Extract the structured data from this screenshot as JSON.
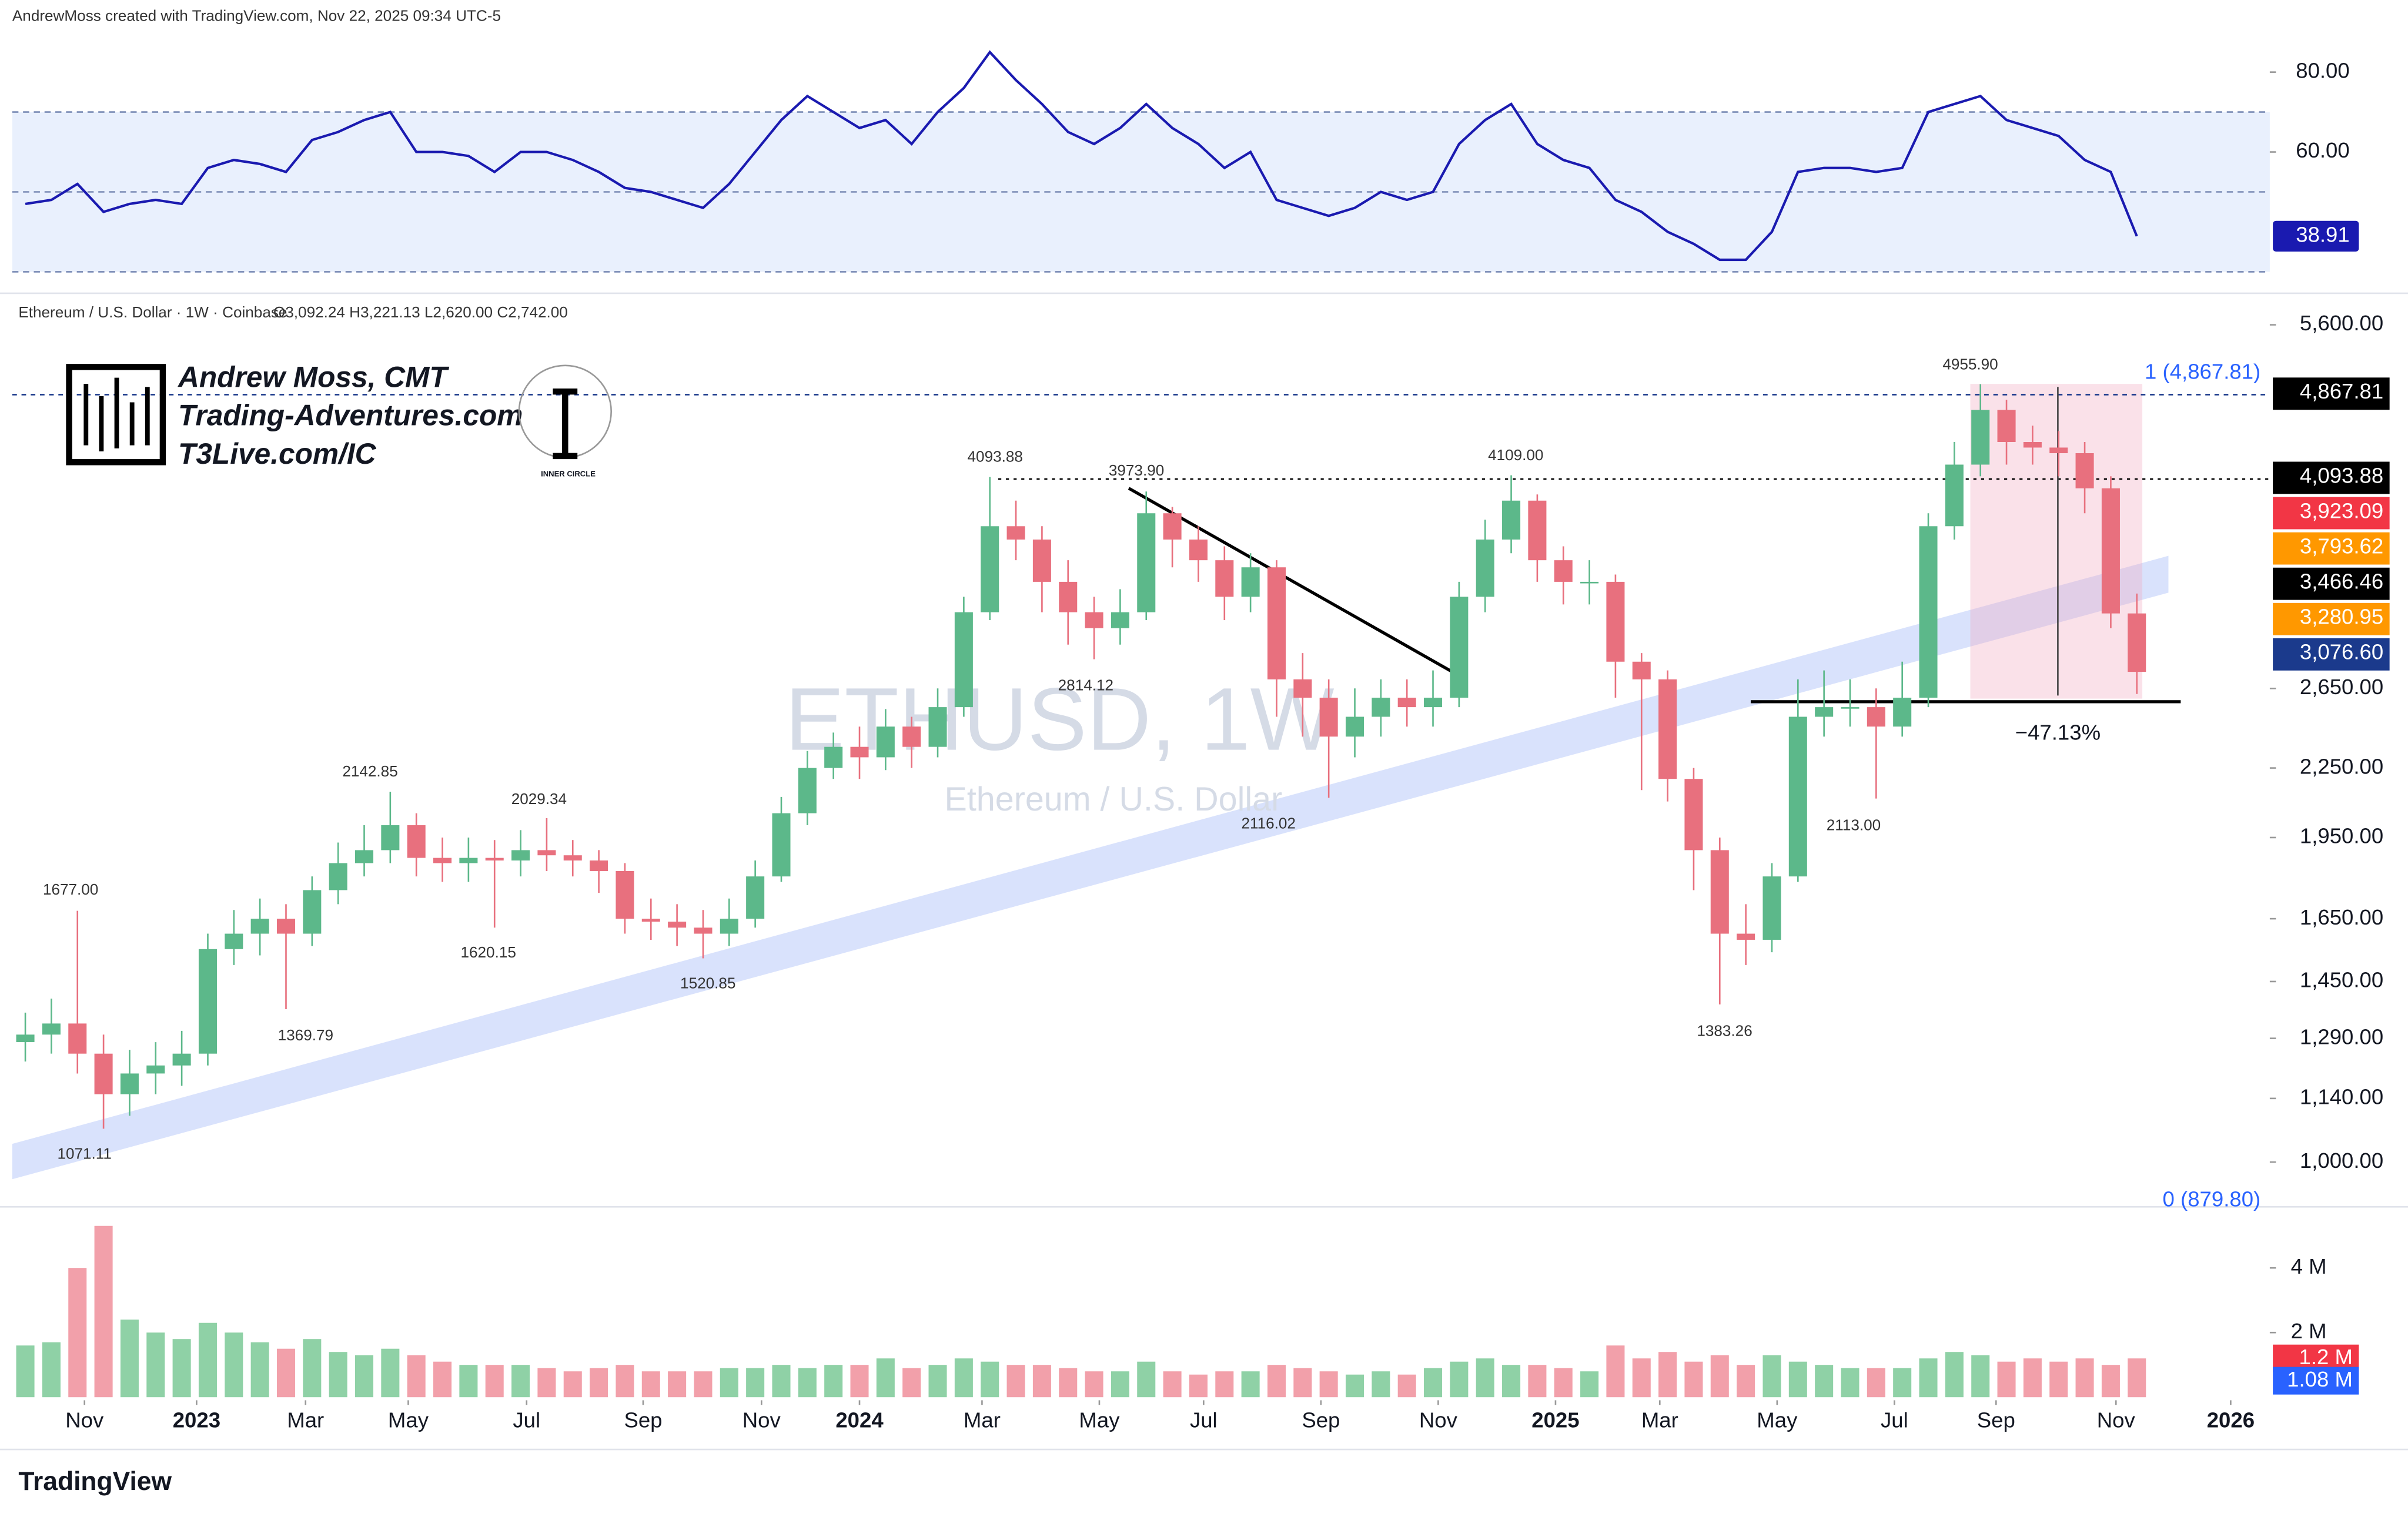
{
  "header": "AndrewMoss created with TradingView.com, Nov 22, 2025 09:34 UTC-5",
  "logo": {
    "name": "Andrew Moss, CMT",
    "site": "Trading-Adventures.com",
    "link": "T3Live.com/IC",
    "badge": "INNER CIRCLE"
  },
  "footer": "TradingView",
  "chart_data": [
    {
      "type": "line",
      "color": "#1a1ab0",
      "ylim": [
        25,
        94.2
      ],
      "yticks": [
        {
          "value": 60,
          "label": "60.00"
        },
        {
          "value": 80,
          "label": "80.00"
        }
      ],
      "bands": [
        30,
        50,
        70
      ],
      "values": [
        47,
        48,
        52,
        45,
        47,
        48,
        47,
        56,
        58,
        57,
        55,
        63,
        65,
        68,
        70,
        60,
        60,
        59,
        55,
        60,
        60,
        58,
        55,
        51,
        50,
        48,
        46,
        52,
        60,
        68,
        74,
        70,
        66,
        68,
        62,
        70,
        76,
        85,
        78,
        72,
        65,
        62,
        66,
        72,
        66,
        62,
        56,
        60,
        48,
        46,
        44,
        46,
        50,
        48,
        50,
        62,
        68,
        72,
        62,
        58,
        56,
        48,
        45,
        40,
        37,
        33,
        33,
        40,
        55,
        56,
        56,
        55,
        56,
        70,
        72,
        74,
        68,
        66,
        64,
        58,
        55,
        38.91
      ]
    },
    {
      "type": "candlestick",
      "symbol": "Ethereum / U.S. Dollar · 1W · Coinbase",
      "ohlc_label": "O3,092.24 H3,221.13 L2,620.00 C2,742.00",
      "watermark": "ETHUSD, 1W",
      "watermark_sub": "Ethereum / U.S. Dollar",
      "log_scale": true,
      "ylim": [
        915,
        5900
      ],
      "yticks": [
        {
          "value": 5600,
          "label": "5,600.00"
        },
        {
          "value": 2650,
          "label": "2,650.00"
        },
        {
          "value": 2250,
          "label": "2,250.00"
        },
        {
          "value": 1950,
          "label": "1,950.00"
        },
        {
          "value": 1650,
          "label": "1,650.00"
        },
        {
          "value": 1450,
          "label": "1,450.00"
        },
        {
          "value": 1290,
          "label": "1,290.00"
        },
        {
          "value": 1140,
          "label": "1,140.00"
        },
        {
          "value": 1000,
          "label": "1,000.00"
        }
      ],
      "xlim": [
        -0.5,
        86.1
      ],
      "xticks": [
        {
          "value": 2.27,
          "label": "Nov"
        },
        {
          "value": 6.57,
          "label": "2023"
        },
        {
          "value": 10.75,
          "label": "Mar"
        },
        {
          "value": 14.69,
          "label": "May"
        },
        {
          "value": 19.23,
          "label": "Jul"
        },
        {
          "value": 23.7,
          "label": "Sep"
        },
        {
          "value": 28.24,
          "label": "Nov"
        },
        {
          "value": 32.0,
          "label": "2024"
        },
        {
          "value": 36.7,
          "label": "Mar"
        },
        {
          "value": 41.2,
          "label": "May"
        },
        {
          "value": 45.2,
          "label": "Jul"
        },
        {
          "value": 49.7,
          "label": "Sep"
        },
        {
          "value": 54.2,
          "label": "Nov"
        },
        {
          "value": 58.7,
          "label": "2025"
        },
        {
          "value": 62.7,
          "label": "Mar"
        },
        {
          "value": 67.2,
          "label": "May"
        },
        {
          "value": 71.7,
          "label": "Jul"
        },
        {
          "value": 75.6,
          "label": "Sep"
        },
        {
          "value": 80.2,
          "label": "Nov"
        },
        {
          "value": 84.6,
          "label": "2026"
        }
      ],
      "up_color": "#5cb88a",
      "down_color": "#e8707e",
      "open": [
        1280,
        1300,
        1330,
        1250,
        1150,
        1200,
        1220,
        1250,
        1550,
        1600,
        1650,
        1600,
        1750,
        1850,
        1900,
        2000,
        1870,
        1850,
        1870,
        1860,
        1900,
        1880,
        1860,
        1820,
        1650,
        1640,
        1620,
        1600,
        1650,
        1800,
        2050,
        2250,
        2350,
        2300,
        2450,
        2350,
        2550,
        3100,
        3700,
        3600,
        3300,
        3100,
        3000,
        3100,
        3800,
        3600,
        3450,
        3200,
        3400,
        2700,
        2600,
        2400,
        2500,
        2600,
        2550,
        2600,
        3200,
        3600,
        3900,
        3450,
        3300,
        3300,
        2800,
        2700,
        2200,
        1900,
        1600,
        1580,
        1800,
        2500,
        2550,
        2550,
        2450,
        2600,
        3700,
        4200,
        4700,
        4400,
        4350,
        4300,
        4000,
        3092.24
      ],
      "high": [
        1360,
        1400,
        1677,
        1300,
        1260,
        1280,
        1310,
        1600,
        1680,
        1720,
        1700,
        1800,
        1930,
        2000,
        2142.85,
        2050,
        1950,
        1950,
        1940,
        1980,
        2029.34,
        1940,
        1900,
        1850,
        1720,
        1700,
        1680,
        1720,
        1860,
        2120,
        2330,
        2420,
        2450,
        2540,
        2500,
        2650,
        3200,
        4093.88,
        3900,
        3700,
        3450,
        3200,
        3250,
        3973.9,
        3850,
        3700,
        3550,
        3500,
        3450,
        2850,
        2700,
        2650,
        2700,
        2700,
        2750,
        3300,
        3750,
        4109,
        3950,
        3550,
        3450,
        3350,
        2850,
        2750,
        2250,
        1950,
        1700,
        1850,
        2700,
        2750,
        2700,
        2650,
        2800,
        3800,
        4400,
        4955.9,
        4800,
        4550,
        4500,
        4400,
        4100,
        3221.13
      ],
      "low": [
        1230,
        1250,
        1200,
        1071.11,
        1100,
        1150,
        1170,
        1220,
        1500,
        1530,
        1369.79,
        1560,
        1700,
        1800,
        1850,
        1800,
        1780,
        1780,
        1620.15,
        1800,
        1820,
        1800,
        1740,
        1600,
        1580,
        1560,
        1520.85,
        1560,
        1620,
        1780,
        2000,
        2200,
        2200,
        2240,
        2250,
        2300,
        2500,
        3050,
        3450,
        3100,
        2900,
        2814.12,
        2900,
        3050,
        3400,
        3300,
        3050,
        3100,
        2500,
        2400,
        2116.02,
        2300,
        2400,
        2450,
        2450,
        2550,
        3100,
        3500,
        3300,
        3150,
        3150,
        2600,
        2150,
        2100,
        1750,
        1383.26,
        1500,
        1540,
        1780,
        2400,
        2450,
        2113,
        2400,
        2550,
        3600,
        4100,
        4200,
        4200,
        4100,
        3800,
        3000,
        2620
      ],
      "close": [
        1300,
        1330,
        1250,
        1150,
        1200,
        1220,
        1250,
        1550,
        1600,
        1650,
        1600,
        1750,
        1850,
        1900,
        2000,
        1870,
        1850,
        1870,
        1860,
        1900,
        1880,
        1860,
        1820,
        1650,
        1640,
        1620,
        1600,
        1650,
        1800,
        2050,
        2250,
        2350,
        2300,
        2450,
        2350,
        2550,
        3100,
        3700,
        3600,
        3300,
        3100,
        3000,
        3100,
        3800,
        3600,
        3450,
        3200,
        3400,
        2700,
        2600,
        2400,
        2500,
        2600,
        2550,
        2600,
        3200,
        3600,
        3900,
        3450,
        3300,
        3300,
        2800,
        2700,
        2200,
        1900,
        1600,
        1580,
        1800,
        2500,
        2550,
        2550,
        2450,
        2600,
        3700,
        4200,
        4700,
        4400,
        4350,
        4300,
        4000,
        3092.24,
        2742
      ],
      "price_labels": [
        "1677.00",
        "1071.11",
        "2142.85",
        "1369.79",
        "2029.34",
        "1620.15",
        "1520.85",
        "4093.88",
        "3973.90",
        "2814.12",
        "2116.02",
        "4109.00",
        "4955.90",
        "1383.26",
        "2113.00"
      ],
      "axis_badges": [
        {
          "value": 4867.81,
          "label": "4,867.81",
          "color": "#000000"
        },
        {
          "value": 4093.88,
          "label": "4,093.88",
          "color": "#000000"
        },
        {
          "value": 3923.09,
          "label": "3,923.09",
          "color": "#f23645"
        },
        {
          "value": 3793.62,
          "label": "3,793.62",
          "color": "#ff9800"
        },
        {
          "value": 3466.46,
          "label": "3,466.46",
          "color": "#000000"
        },
        {
          "value": 3280.95,
          "label": "3,280.95",
          "color": "#ff9800"
        },
        {
          "value": 3076.6,
          "label": "3,076.60",
          "color": "#1b3a8c"
        }
      ],
      "fib_top": "1 (4,867.81)",
      "fib_bottom": "0 (879.80)",
      "drawdown": "−47.13%"
    },
    {
      "type": "volume",
      "ylim": [
        0,
        5700000
      ],
      "yticks": [
        {
          "value": 2000000,
          "label": "2 M"
        },
        {
          "value": 4000000,
          "label": "4 M"
        }
      ],
      "up_color": "#8fd1a6",
      "down_color": "#f2a0aa",
      "values": [
        1600000,
        1700000,
        4000000,
        5300000,
        2400000,
        2000000,
        1800000,
        2300000,
        2000000,
        1700000,
        1500000,
        1800000,
        1400000,
        1300000,
        1500000,
        1300000,
        1100000,
        1000000,
        1000000,
        1000000,
        900000,
        800000,
        900000,
        1000000,
        800000,
        800000,
        800000,
        900000,
        900000,
        1000000,
        900000,
        1000000,
        1000000,
        1200000,
        900000,
        1000000,
        1200000,
        1100000,
        1000000,
        1000000,
        900000,
        800000,
        800000,
        1100000,
        800000,
        700000,
        800000,
        800000,
        1000000,
        900000,
        800000,
        700000,
        800000,
        700000,
        900000,
        1100000,
        1200000,
        1000000,
        1000000,
        900000,
        800000,
        1600000,
        1200000,
        1400000,
        1100000,
        1300000,
        1000000,
        1300000,
        1100000,
        1000000,
        900000,
        900000,
        900000,
        1200000,
        1400000,
        1300000,
        1100000,
        1200000,
        1100000,
        1200000,
        1000000,
        1200000
      ],
      "badges": [
        {
          "value": 1200000,
          "label": "1.2 M",
          "color": "#f23645"
        },
        {
          "value": 1080000,
          "label": "1.08 M",
          "color": "#2962ff"
        }
      ]
    }
  ]
}
